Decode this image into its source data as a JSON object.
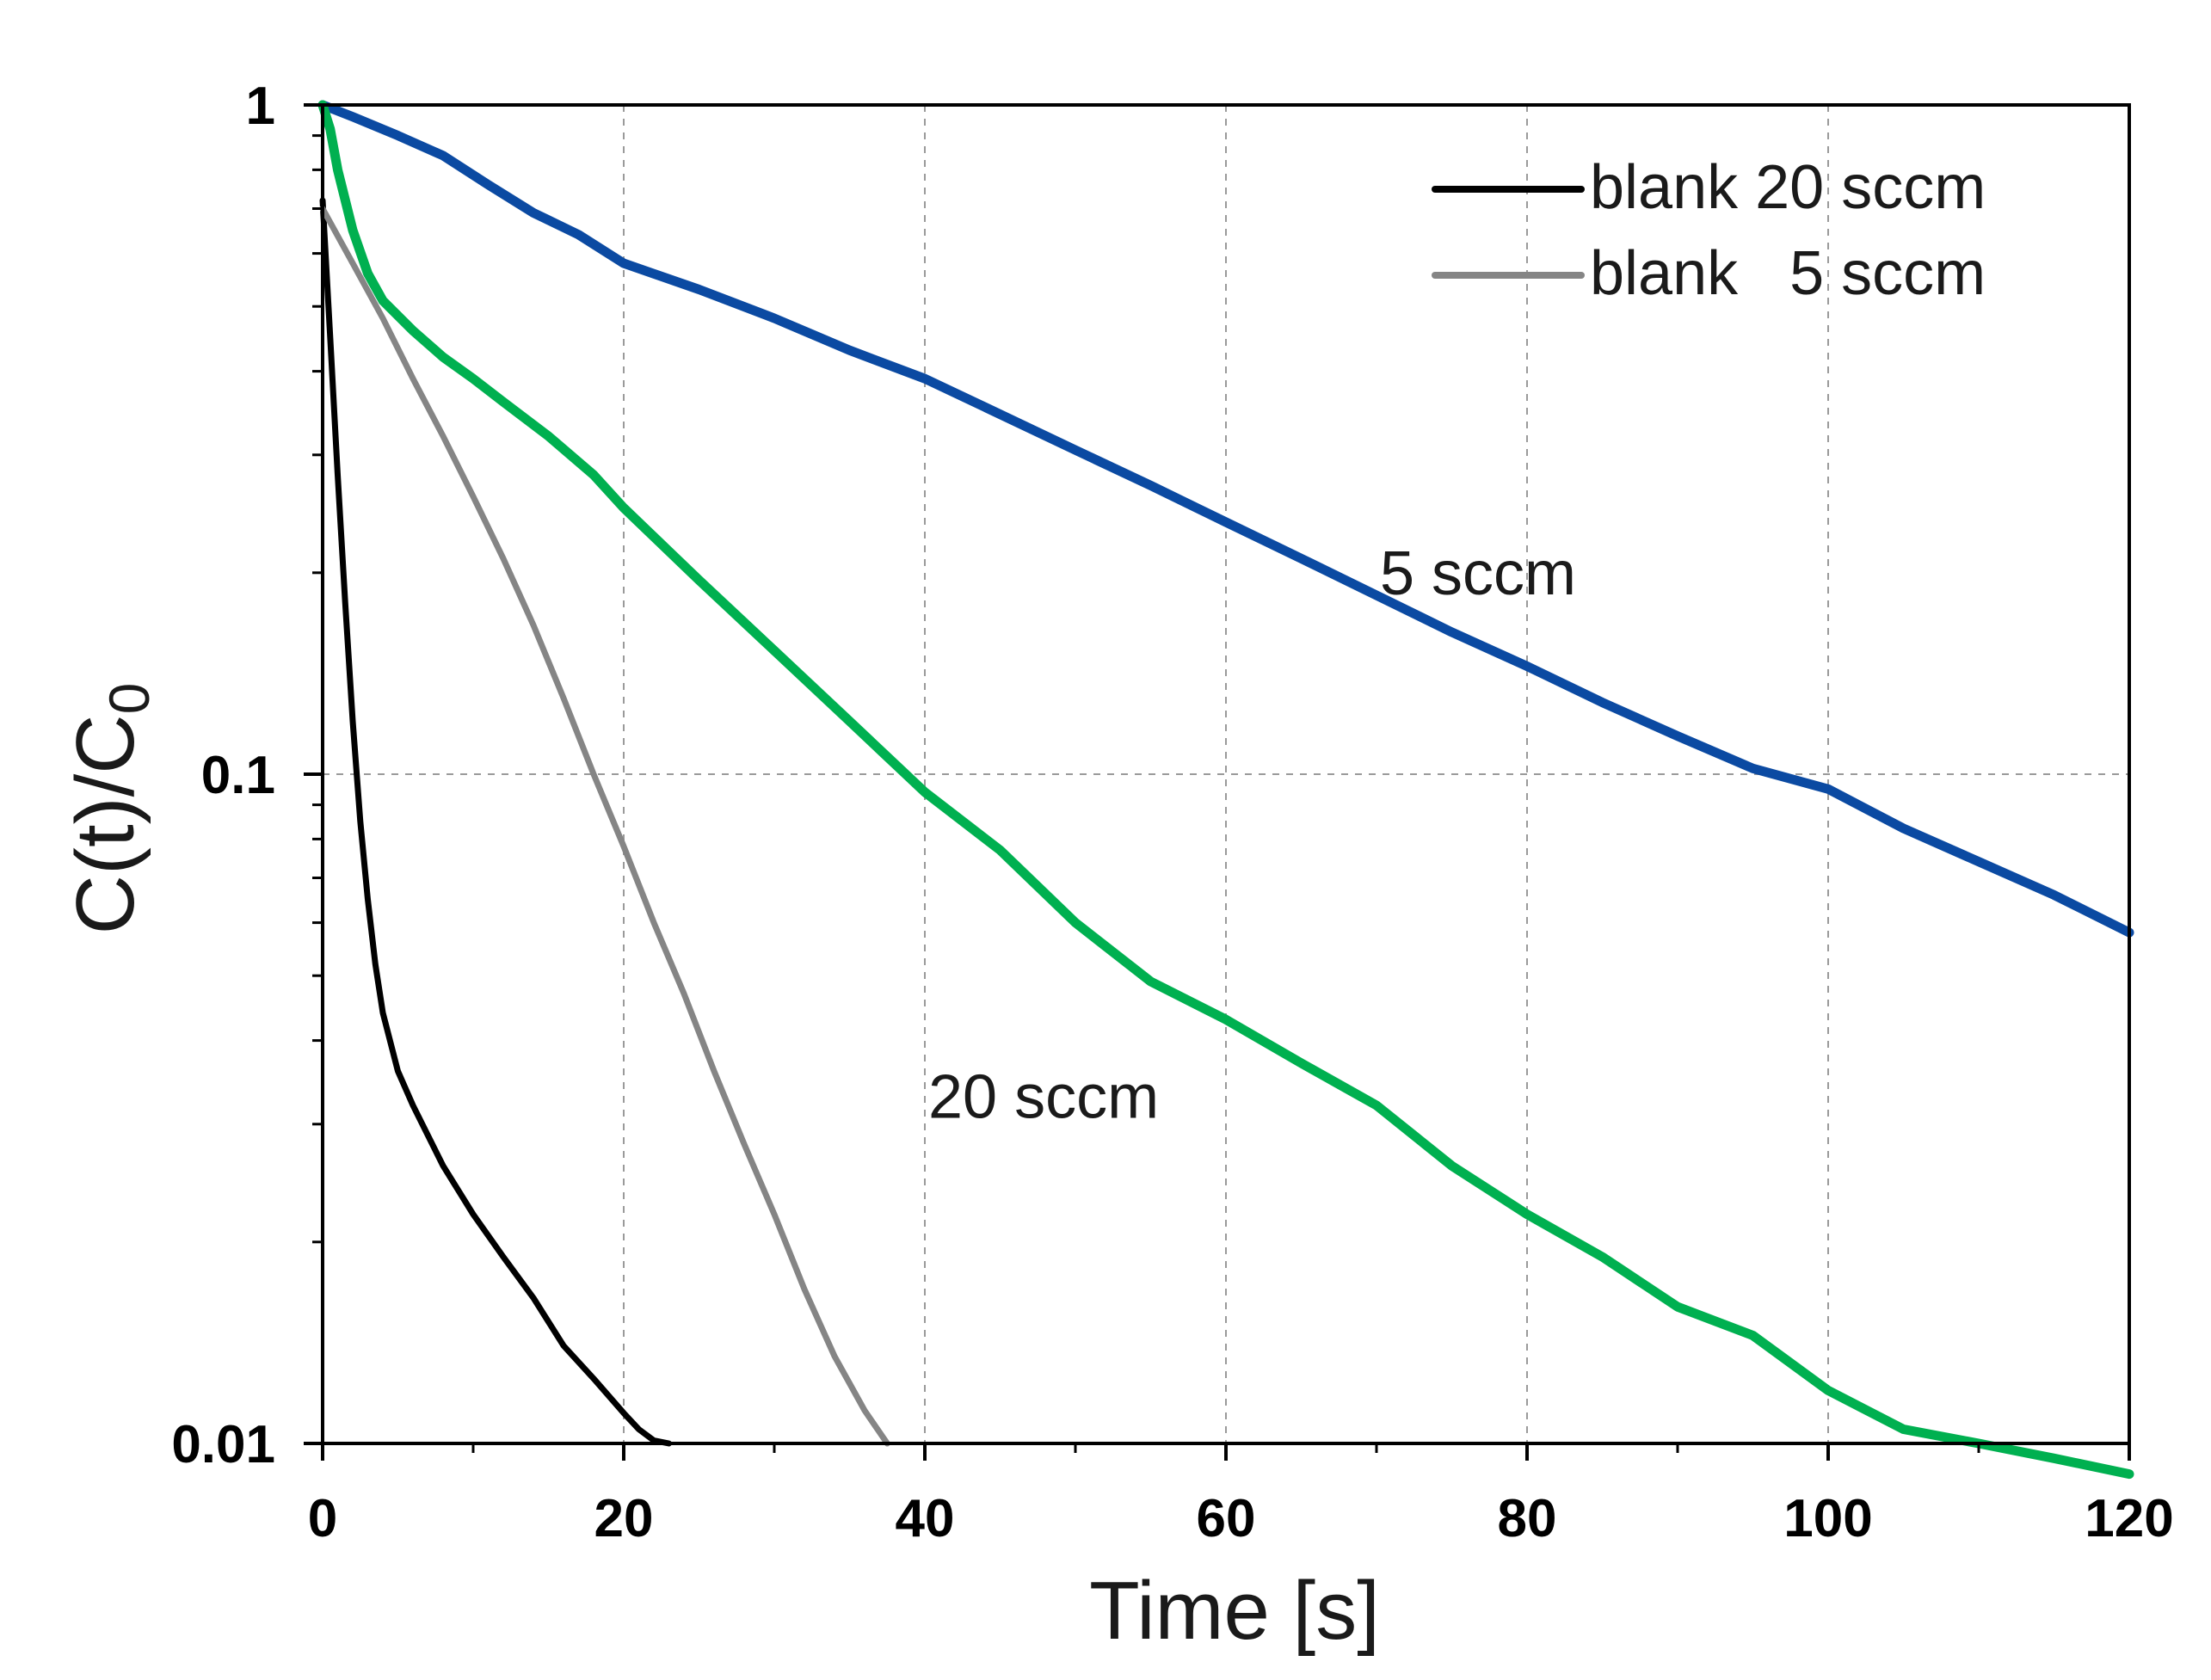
{
  "chart_data": {
    "type": "line",
    "title": "",
    "xlabel": "Time [s]",
    "ylabel": "C(t)/C",
    "ylabel_sub": "0",
    "xlim": [
      0,
      120
    ],
    "ylim": [
      0.01,
      1
    ],
    "yscale": "log",
    "grid": true,
    "legend_position": "top-right",
    "x_ticks": [
      0,
      20,
      40,
      60,
      80,
      100,
      120
    ],
    "x_tick_labels": [
      "0",
      "20",
      "40",
      "60",
      "80",
      "100",
      "120"
    ],
    "y_ticks": [
      0.01,
      0.1,
      1
    ],
    "y_tick_labels": [
      "0.01",
      "0.1",
      "1"
    ],
    "series": [
      {
        "name": "5 sccm",
        "color": "#0b4aa2",
        "x": [
          0,
          2,
          5,
          8,
          11,
          14,
          17,
          20,
          25,
          30,
          35,
          40,
          45,
          50,
          55,
          60,
          65,
          70,
          75,
          80,
          85,
          90,
          95,
          100,
          105,
          110,
          115,
          120
        ],
        "y": [
          1.0,
          0.96,
          0.9,
          0.84,
          0.76,
          0.69,
          0.64,
          0.58,
          0.53,
          0.48,
          0.43,
          0.39,
          0.345,
          0.305,
          0.27,
          0.238,
          0.21,
          0.185,
          0.163,
          0.145,
          0.128,
          0.114,
          0.102,
          0.095,
          0.083,
          0.074,
          0.066,
          0.058
        ]
      },
      {
        "name": "20 sccm",
        "color": "#00b050",
        "x": [
          0,
          0.5,
          1,
          2,
          3,
          4,
          6,
          8,
          10,
          12,
          15,
          18,
          20,
          25,
          30,
          35,
          40,
          45,
          50,
          55,
          60,
          65,
          70,
          75,
          80,
          85,
          90,
          95,
          100,
          105,
          110,
          115,
          120
        ],
        "y": [
          1.0,
          0.92,
          0.8,
          0.65,
          0.56,
          0.51,
          0.46,
          0.42,
          0.39,
          0.36,
          0.32,
          0.28,
          0.25,
          0.195,
          0.153,
          0.12,
          0.094,
          0.077,
          0.06,
          0.049,
          0.043,
          0.037,
          0.032,
          0.026,
          0.022,
          0.019,
          0.016,
          0.0145,
          0.012,
          0.0105,
          0.01,
          0.0095,
          0.009
        ]
      },
      {
        "name": "blank 20 sccm",
        "color": "#000000",
        "x": [
          0,
          0.5,
          1,
          1.5,
          2,
          2.5,
          3,
          3.5,
          4,
          5,
          6,
          8,
          10,
          12,
          14,
          16,
          18,
          20,
          21,
          22,
          23
        ],
        "y": [
          0.72,
          0.45,
          0.28,
          0.18,
          0.12,
          0.085,
          0.065,
          0.052,
          0.044,
          0.036,
          0.032,
          0.026,
          0.022,
          0.019,
          0.0165,
          0.014,
          0.0125,
          0.0111,
          0.0105,
          0.0101,
          0.01
        ]
      },
      {
        "name": "blank   5 sccm",
        "color": "#858585",
        "x": [
          0,
          2,
          4,
          6,
          8,
          10,
          12,
          14,
          16,
          18,
          20,
          22,
          24,
          26,
          28,
          30,
          32,
          34,
          36,
          37.5
        ],
        "y": [
          0.7,
          0.58,
          0.48,
          0.39,
          0.32,
          0.26,
          0.21,
          0.167,
          0.13,
          0.1,
          0.078,
          0.06,
          0.047,
          0.036,
          0.028,
          0.022,
          0.017,
          0.0135,
          0.0112,
          0.01
        ]
      }
    ],
    "legend": [
      {
        "label": "blank 20 sccm",
        "color": "#000000"
      },
      {
        "label": "blank   5 sccm",
        "color": "#858585"
      }
    ],
    "annotations": [
      {
        "text": "5 sccm",
        "x": 70,
        "y": 0.2
      },
      {
        "text": "20 sccm",
        "x": 40,
        "y": 0.033
      }
    ]
  }
}
